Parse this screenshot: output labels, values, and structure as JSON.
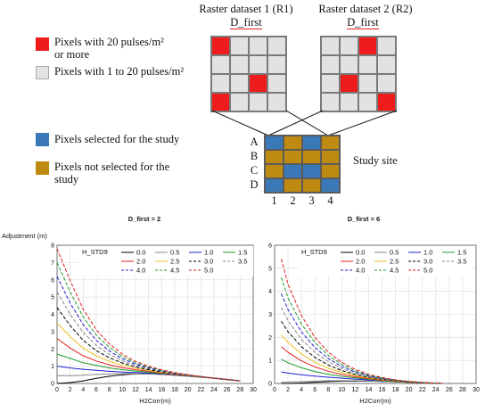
{
  "legend_top": {
    "items": [
      {
        "color": "#ee1c1c",
        "label": "Pixels with 20 pulses/m²\nor more"
      },
      {
        "color": "#e2e2e2",
        "label": "Pixels with 1 to 20 pulses/m²"
      }
    ]
  },
  "legend_selection": {
    "items": [
      {
        "color": "#3a78b8",
        "label": "Pixels selected for the study"
      },
      {
        "color": "#be8a12",
        "label": "Pixels not selected for the\nstudy"
      }
    ]
  },
  "raster1": {
    "title": "Raster dataset 1 (R1)",
    "subtitle": "D_first",
    "cells": [
      [
        "r",
        "g",
        "g",
        "g"
      ],
      [
        "g",
        "g",
        "g",
        "g"
      ],
      [
        "g",
        "g",
        "r",
        "g"
      ],
      [
        "r",
        "g",
        "g",
        "g"
      ]
    ]
  },
  "raster2": {
    "title": "Raster dataset 2 (R2)",
    "subtitle": "D_first",
    "cells": [
      [
        "g",
        "g",
        "r",
        "g"
      ],
      [
        "g",
        "g",
        "g",
        "g"
      ],
      [
        "g",
        "r",
        "g",
        "g"
      ],
      [
        "g",
        "g",
        "g",
        "r"
      ]
    ]
  },
  "study_site": {
    "label": "Study site",
    "row_labels": [
      "A",
      "B",
      "C",
      "D"
    ],
    "col_labels": [
      "1",
      "2",
      "3",
      "4"
    ],
    "cells": [
      [
        "b",
        "y",
        "b",
        "y"
      ],
      [
        "y",
        "y",
        "y",
        "y"
      ],
      [
        "y",
        "b",
        "b",
        "y"
      ],
      [
        "b",
        "y",
        "y",
        "b"
      ]
    ]
  },
  "colors": {
    "r": "#ee1c1c",
    "g": "#e2e2e2",
    "b": "#3a78b8",
    "y": "#be8a12"
  },
  "chart_data": [
    {
      "type": "line",
      "title": "D_first = 2",
      "xlabel": "H2Corr(m)",
      "ylabel": "Adjustment (m)",
      "xlim": [
        0,
        30
      ],
      "ylim": [
        0,
        8
      ],
      "xticks": [
        0,
        2,
        4,
        6,
        8,
        10,
        12,
        14,
        16,
        18,
        20,
        22,
        24,
        26,
        28,
        30
      ],
      "yticks": [
        0,
        1,
        2,
        3,
        4,
        5,
        6,
        7,
        8
      ],
      "grid": true,
      "legend_title": "H_STD9",
      "legend_position": "top-right",
      "series": [
        {
          "name": "0.0",
          "color": "#000000",
          "dash": "solid",
          "x": [
            0,
            2,
            4,
            6,
            8,
            10,
            12,
            14,
            16,
            18,
            20,
            22,
            24,
            26,
            28
          ],
          "y": [
            0.0,
            0.05,
            0.15,
            0.3,
            0.42,
            0.5,
            0.55,
            0.55,
            0.52,
            0.48,
            0.42,
            0.36,
            0.3,
            0.22,
            0.15
          ]
        },
        {
          "name": "0.5",
          "color": "#888888",
          "dash": "solid",
          "x": [
            0,
            2,
            4,
            6,
            8,
            10,
            12,
            14,
            16,
            18,
            20,
            22,
            24,
            26,
            28
          ],
          "y": [
            0.45,
            0.45,
            0.48,
            0.52,
            0.55,
            0.57,
            0.57,
            0.55,
            0.52,
            0.48,
            0.42,
            0.36,
            0.3,
            0.22,
            0.15
          ]
        },
        {
          "name": "1.0",
          "color": "#1f1fcf",
          "dash": "solid",
          "x": [
            0,
            2,
            4,
            6,
            8,
            10,
            12,
            14,
            16,
            18,
            20,
            22,
            24,
            26,
            28
          ],
          "y": [
            1.0,
            0.9,
            0.82,
            0.76,
            0.7,
            0.66,
            0.63,
            0.6,
            0.55,
            0.5,
            0.44,
            0.38,
            0.31,
            0.23,
            0.15
          ]
        },
        {
          "name": "1.5",
          "color": "#1f9a2a",
          "dash": "solid",
          "x": [
            0,
            2,
            4,
            6,
            8,
            10,
            12,
            14,
            16,
            18,
            20,
            22,
            24,
            26,
            28
          ],
          "y": [
            1.7,
            1.45,
            1.2,
            1.05,
            0.9,
            0.8,
            0.72,
            0.65,
            0.58,
            0.52,
            0.45,
            0.38,
            0.31,
            0.23,
            0.15
          ]
        },
        {
          "name": "2.0",
          "color": "#e22020",
          "dash": "solid",
          "x": [
            0,
            2,
            4,
            6,
            8,
            10,
            12,
            14,
            16,
            18,
            20,
            22,
            24,
            26,
            28
          ],
          "y": [
            2.6,
            2.05,
            1.6,
            1.3,
            1.08,
            0.92,
            0.8,
            0.7,
            0.61,
            0.53,
            0.45,
            0.38,
            0.31,
            0.23,
            0.15
          ]
        },
        {
          "name": "2.5",
          "color": "#e8c020",
          "dash": "solid",
          "x": [
            0,
            2,
            4,
            6,
            8,
            10,
            12,
            14,
            16,
            18,
            20,
            22,
            24,
            26,
            28
          ],
          "y": [
            3.5,
            2.7,
            2.05,
            1.6,
            1.28,
            1.05,
            0.88,
            0.75,
            0.64,
            0.55,
            0.46,
            0.38,
            0.31,
            0.23,
            0.15
          ]
        },
        {
          "name": "3.0",
          "color": "#000000",
          "dash": "dash",
          "x": [
            0,
            2,
            4,
            6,
            8,
            10,
            12,
            14,
            16,
            18,
            20,
            22,
            24,
            26,
            28
          ],
          "y": [
            4.4,
            3.35,
            2.5,
            1.9,
            1.48,
            1.18,
            0.96,
            0.8,
            0.67,
            0.56,
            0.47,
            0.39,
            0.31,
            0.23,
            0.15
          ]
        },
        {
          "name": "3.5",
          "color": "#888888",
          "dash": "dash",
          "x": [
            0,
            2,
            4,
            6,
            8,
            10,
            12,
            14,
            16,
            18,
            20,
            22,
            24,
            26,
            28
          ],
          "y": [
            5.3,
            4.0,
            2.95,
            2.2,
            1.68,
            1.3,
            1.04,
            0.85,
            0.7,
            0.58,
            0.48,
            0.39,
            0.31,
            0.23,
            0.15
          ]
        },
        {
          "name": "4.0",
          "color": "#1f1fcf",
          "dash": "dash",
          "x": [
            0,
            2,
            4,
            6,
            8,
            10,
            12,
            14,
            16,
            18,
            20,
            22,
            24,
            26,
            28
          ],
          "y": [
            6.2,
            4.65,
            3.4,
            2.5,
            1.88,
            1.43,
            1.12,
            0.9,
            0.73,
            0.6,
            0.49,
            0.4,
            0.31,
            0.23,
            0.15
          ]
        },
        {
          "name": "4.5",
          "color": "#1f9a2a",
          "dash": "dash",
          "x": [
            0,
            2,
            4,
            6,
            8,
            10,
            12,
            14,
            16,
            18,
            20,
            22,
            24,
            26,
            28
          ],
          "y": [
            7.0,
            5.3,
            3.85,
            2.8,
            2.08,
            1.56,
            1.2,
            0.95,
            0.76,
            0.62,
            0.5,
            0.4,
            0.31,
            0.23,
            0.15
          ]
        },
        {
          "name": "5.0",
          "color": "#e22020",
          "dash": "dash",
          "x": [
            0,
            2,
            4,
            6,
            8,
            10,
            12,
            14,
            16,
            18,
            20,
            22,
            24,
            26,
            28
          ],
          "y": [
            7.8,
            5.95,
            4.3,
            3.1,
            2.28,
            1.7,
            1.28,
            1.0,
            0.79,
            0.63,
            0.51,
            0.41,
            0.31,
            0.23,
            0.15
          ]
        }
      ]
    },
    {
      "type": "line",
      "title": "D_first = 6",
      "xlabel": "H2Corr(m)",
      "ylabel": "",
      "xlim": [
        0,
        30
      ],
      "ylim": [
        0,
        6
      ],
      "xticks": [
        0,
        2,
        4,
        6,
        8,
        10,
        12,
        14,
        16,
        18,
        20,
        22,
        24,
        26,
        28,
        30
      ],
      "yticks": [
        0,
        1,
        2,
        3,
        4,
        5,
        6
      ],
      "grid": true,
      "legend_title": "H_STD9",
      "legend_position": "top-right",
      "series": [
        {
          "name": "0.0",
          "color": "#000000",
          "dash": "solid",
          "x": [
            1,
            2,
            4,
            6,
            8,
            10,
            12,
            14,
            16,
            18,
            20,
            22,
            24,
            25
          ],
          "y": [
            0.0,
            0.0,
            0.02,
            0.05,
            0.08,
            0.1,
            0.1,
            0.1,
            0.09,
            0.07,
            0.05,
            0.03,
            0.01,
            0.0
          ]
        },
        {
          "name": "0.5",
          "color": "#888888",
          "dash": "solid",
          "x": [
            1,
            2,
            4,
            6,
            8,
            10,
            12,
            14,
            16,
            18,
            20,
            22,
            24,
            25
          ],
          "y": [
            0.05,
            0.06,
            0.08,
            0.1,
            0.12,
            0.12,
            0.12,
            0.11,
            0.09,
            0.07,
            0.05,
            0.03,
            0.01,
            0.0
          ]
        },
        {
          "name": "1.0",
          "color": "#1f1fcf",
          "dash": "solid",
          "x": [
            1,
            2,
            4,
            6,
            8,
            10,
            12,
            14,
            16,
            18,
            20,
            22,
            24,
            25
          ],
          "y": [
            0.5,
            0.45,
            0.38,
            0.32,
            0.27,
            0.23,
            0.19,
            0.15,
            0.12,
            0.09,
            0.06,
            0.03,
            0.01,
            0.0
          ]
        },
        {
          "name": "1.5",
          "color": "#1f9a2a",
          "dash": "solid",
          "x": [
            1,
            2,
            4,
            6,
            8,
            10,
            12,
            14,
            16,
            18,
            20,
            22,
            24,
            25
          ],
          "y": [
            1.05,
            0.9,
            0.68,
            0.52,
            0.4,
            0.31,
            0.24,
            0.18,
            0.13,
            0.09,
            0.06,
            0.03,
            0.01,
            0.0
          ]
        },
        {
          "name": "2.0",
          "color": "#e22020",
          "dash": "solid",
          "x": [
            1,
            2,
            4,
            6,
            8,
            10,
            12,
            14,
            16,
            18,
            20,
            22,
            24,
            25
          ],
          "y": [
            1.6,
            1.35,
            0.98,
            0.72,
            0.53,
            0.39,
            0.29,
            0.21,
            0.15,
            0.1,
            0.06,
            0.03,
            0.01,
            0.0
          ]
        },
        {
          "name": "2.5",
          "color": "#e8c020",
          "dash": "solid",
          "x": [
            1,
            2,
            4,
            6,
            8,
            10,
            12,
            14,
            16,
            18,
            20,
            22,
            24,
            25
          ],
          "y": [
            2.1,
            1.78,
            1.28,
            0.92,
            0.66,
            0.48,
            0.34,
            0.24,
            0.17,
            0.11,
            0.07,
            0.04,
            0.01,
            0.0
          ]
        },
        {
          "name": "3.0",
          "color": "#000000",
          "dash": "dash",
          "x": [
            1,
            2,
            4,
            6,
            8,
            10,
            12,
            14,
            16,
            18,
            20,
            22,
            24,
            25
          ],
          "y": [
            2.7,
            2.25,
            1.6,
            1.13,
            0.8,
            0.56,
            0.39,
            0.27,
            0.18,
            0.12,
            0.07,
            0.04,
            0.01,
            0.0
          ]
        },
        {
          "name": "3.5",
          "color": "#888888",
          "dash": "dash",
          "x": [
            1,
            2,
            4,
            6,
            8,
            10,
            12,
            14,
            16,
            18,
            20,
            22,
            24,
            25
          ],
          "y": [
            3.3,
            2.72,
            1.92,
            1.35,
            0.94,
            0.65,
            0.45,
            0.3,
            0.2,
            0.13,
            0.08,
            0.04,
            0.01,
            0.0
          ]
        },
        {
          "name": "4.0",
          "color": "#1f1fcf",
          "dash": "dash",
          "x": [
            1,
            2,
            4,
            6,
            8,
            10,
            12,
            14,
            16,
            18,
            20,
            22,
            24,
            25
          ],
          "y": [
            3.9,
            3.2,
            2.24,
            1.56,
            1.08,
            0.74,
            0.5,
            0.33,
            0.22,
            0.14,
            0.08,
            0.04,
            0.01,
            0.0
          ]
        },
        {
          "name": "4.5",
          "color": "#1f9a2a",
          "dash": "dash",
          "x": [
            1,
            2,
            4,
            6,
            8,
            10,
            12,
            14,
            16,
            18,
            20,
            22,
            24,
            25
          ],
          "y": [
            4.6,
            3.7,
            2.58,
            1.78,
            1.22,
            0.83,
            0.55,
            0.36,
            0.24,
            0.15,
            0.09,
            0.04,
            0.01,
            0.0
          ]
        },
        {
          "name": "5.0",
          "color": "#e22020",
          "dash": "dash",
          "x": [
            1,
            2,
            4,
            6,
            8,
            10,
            12,
            14,
            16,
            18,
            20,
            22,
            24,
            25
          ],
          "y": [
            5.4,
            4.3,
            2.95,
            2.0,
            1.36,
            0.92,
            0.61,
            0.4,
            0.26,
            0.16,
            0.09,
            0.05,
            0.01,
            0.0
          ]
        }
      ]
    }
  ]
}
